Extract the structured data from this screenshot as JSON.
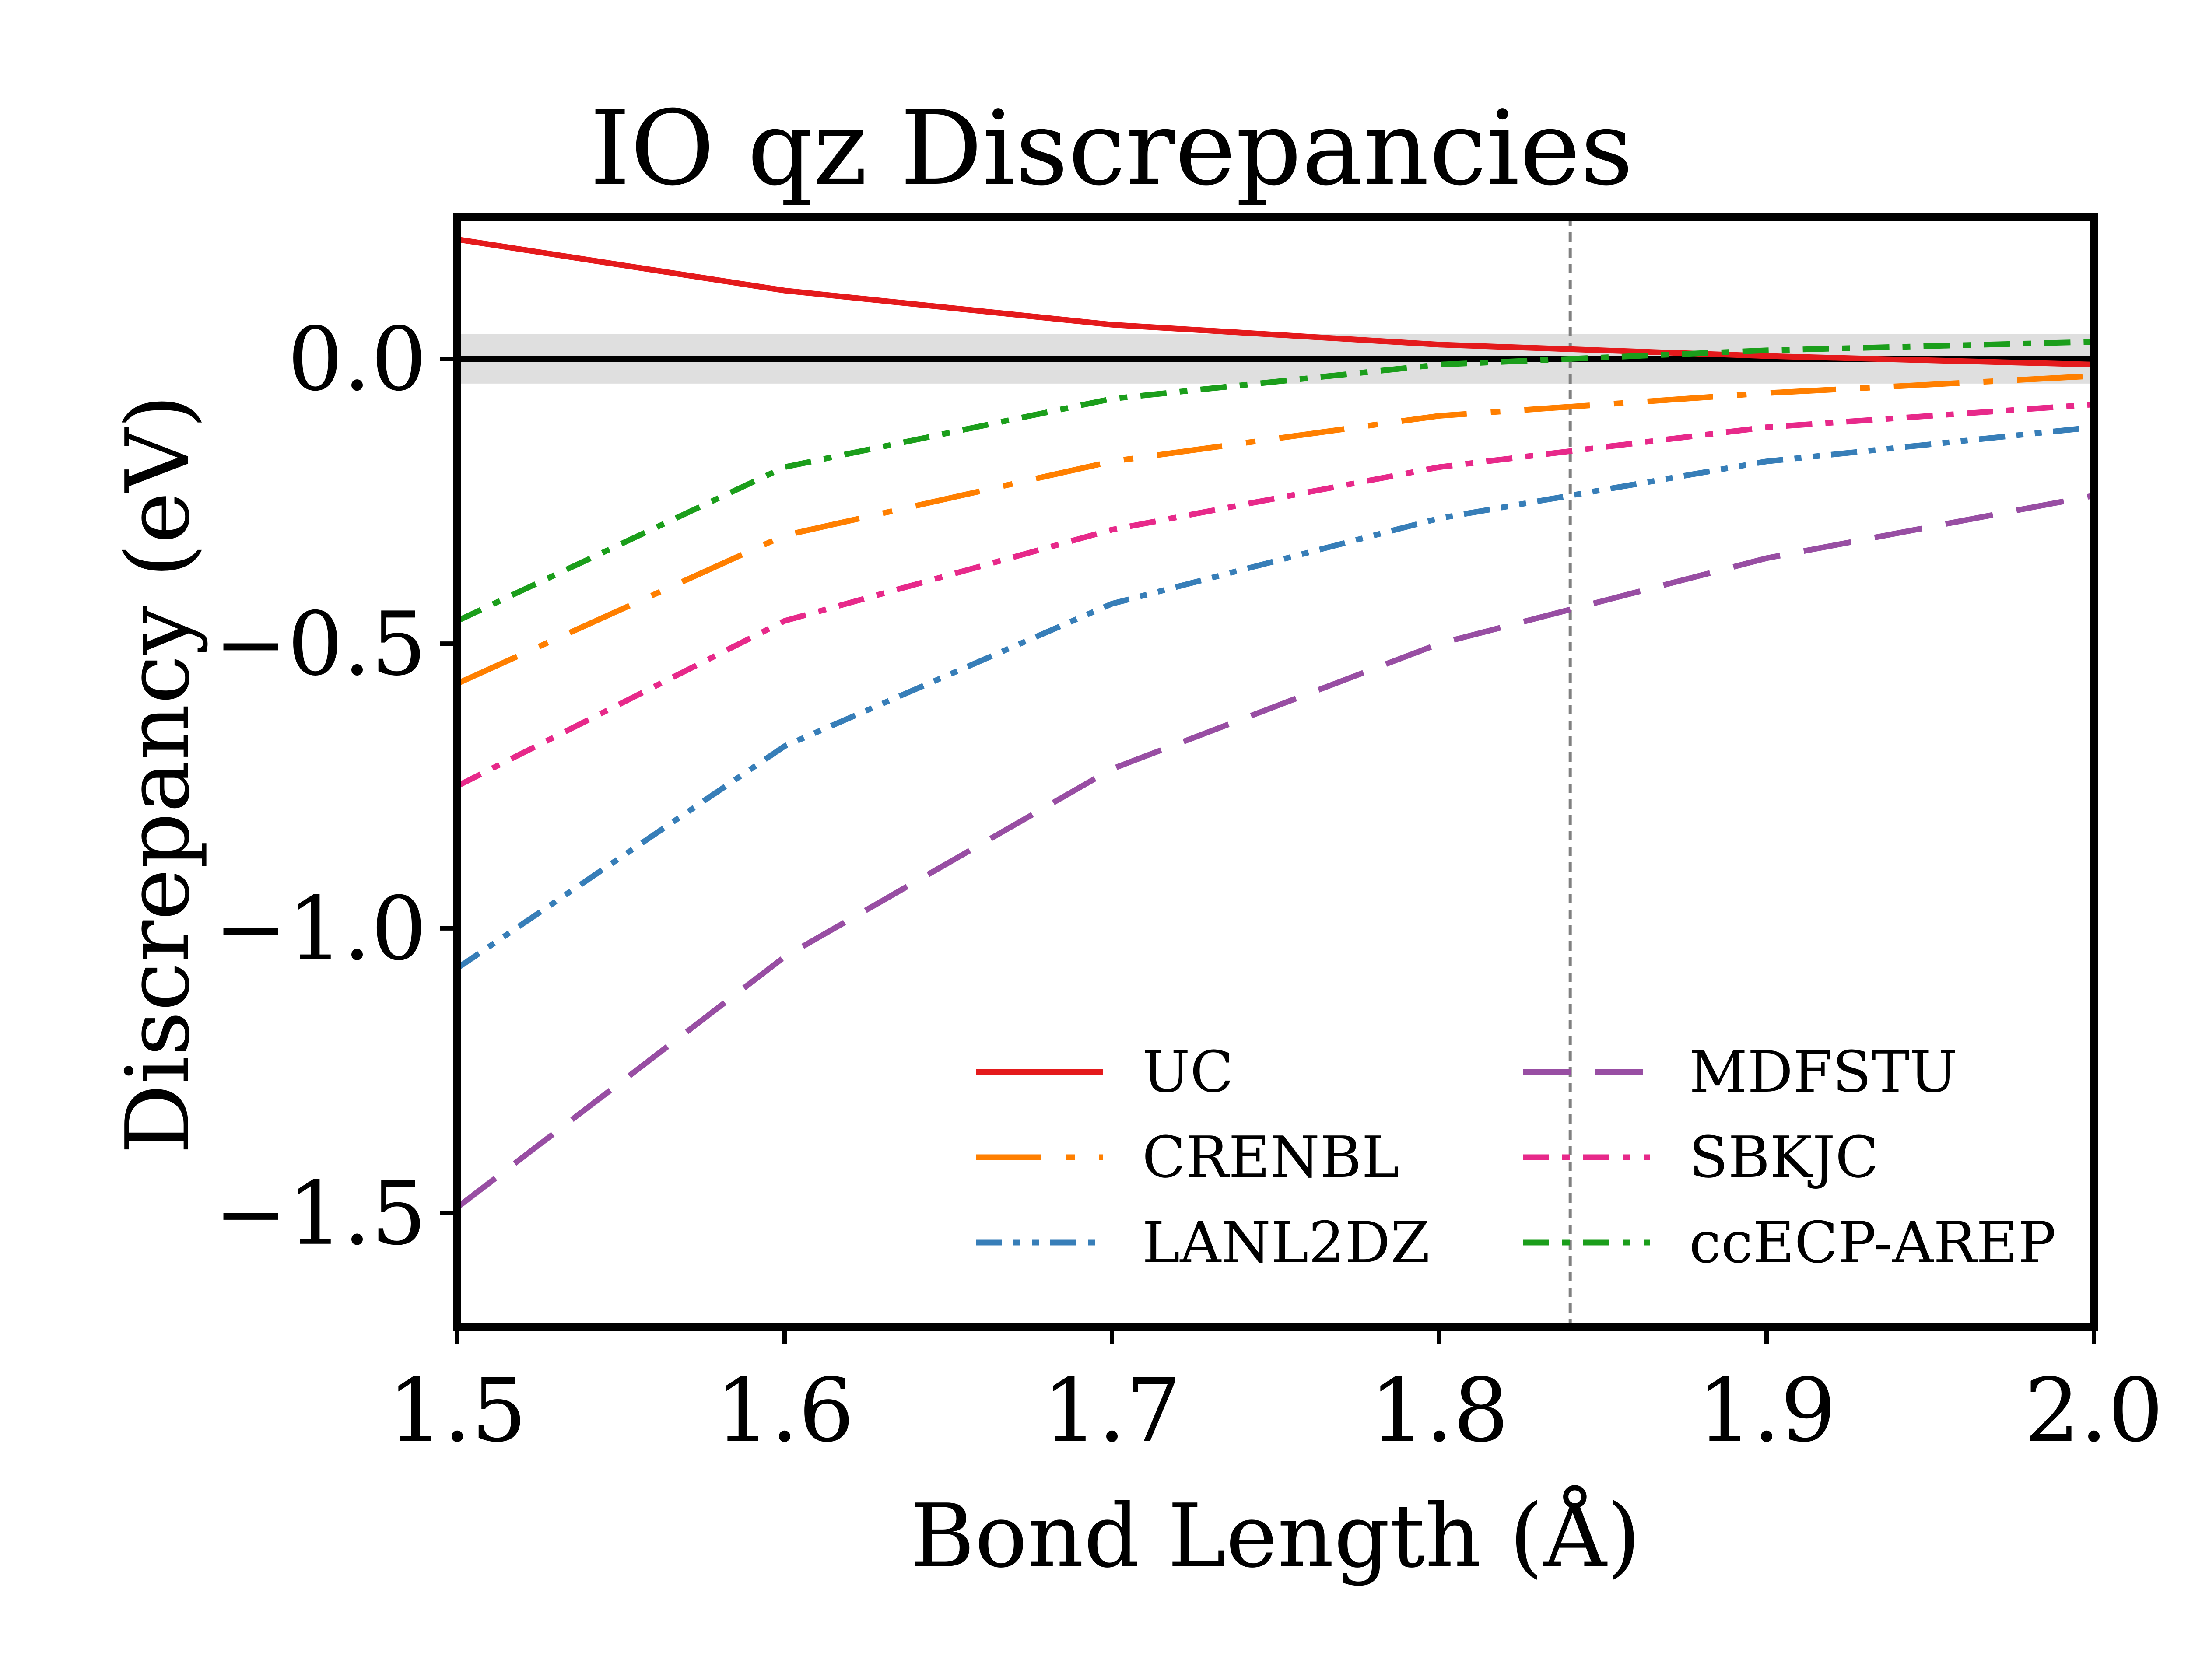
{
  "chart_data": {
    "type": "line",
    "title": "IO qz Discrepancies",
    "xlabel": "Bond Length (Å)",
    "ylabel": "Discrepancy (eV)",
    "xlim": [
      1.5,
      2.0
    ],
    "ylim": [
      -1.7,
      0.25
    ],
    "xticks": [
      "1.5",
      "1.6",
      "1.7",
      "1.8",
      "1.9",
      "2.0"
    ],
    "yticks": [
      "0.0",
      "−0.5",
      "−1.0",
      "−1.5"
    ],
    "grid": false,
    "legend_position": "lower-right",
    "reference_band": [
      -0.0434,
      0.0434
    ],
    "reference_line_y": 0.0,
    "equilibrium_x": 1.84,
    "series": [
      {
        "name": "UC",
        "color": "#e41a1c",
        "dash": "solid",
        "x": [
          1.5,
          1.6,
          1.7,
          1.8,
          1.9,
          2.0
        ],
        "values": [
          0.21,
          0.12,
          0.06,
          0.025,
          0.005,
          -0.01
        ]
      },
      {
        "name": "CRENBL",
        "color": "#ff7f00",
        "dash": "longdash-dot",
        "x": [
          1.5,
          1.6,
          1.7,
          1.8,
          1.9,
          2.0
        ],
        "values": [
          -0.57,
          -0.31,
          -0.18,
          -0.1,
          -0.06,
          -0.03
        ]
      },
      {
        "name": "LANL2DZ",
        "color": "#377eb8",
        "dash": "dash-dot-dot",
        "x": [
          1.5,
          1.6,
          1.7,
          1.8,
          1.9,
          2.0
        ],
        "values": [
          -1.07,
          -0.68,
          -0.43,
          -0.28,
          -0.18,
          -0.12
        ]
      },
      {
        "name": "MDFSTU",
        "color": "#984ea3",
        "dash": "dashed",
        "x": [
          1.5,
          1.6,
          1.7,
          1.8,
          1.9,
          2.0
        ],
        "values": [
          -1.49,
          -1.05,
          -0.72,
          -0.5,
          -0.35,
          -0.24
        ]
      },
      {
        "name": "SBKJC",
        "color": "#e7298a",
        "dash": "dash-dot",
        "x": [
          1.5,
          1.6,
          1.7,
          1.8,
          1.9,
          2.0
        ],
        "values": [
          -0.75,
          -0.46,
          -0.3,
          -0.19,
          -0.12,
          -0.08
        ]
      },
      {
        "name": "ccECP-AREP",
        "color": "#1b9e1b",
        "dash": "dash-dot",
        "x": [
          1.5,
          1.6,
          1.7,
          1.8,
          1.9,
          2.0
        ],
        "values": [
          -0.46,
          -0.19,
          -0.07,
          -0.01,
          0.015,
          0.03
        ]
      }
    ]
  }
}
